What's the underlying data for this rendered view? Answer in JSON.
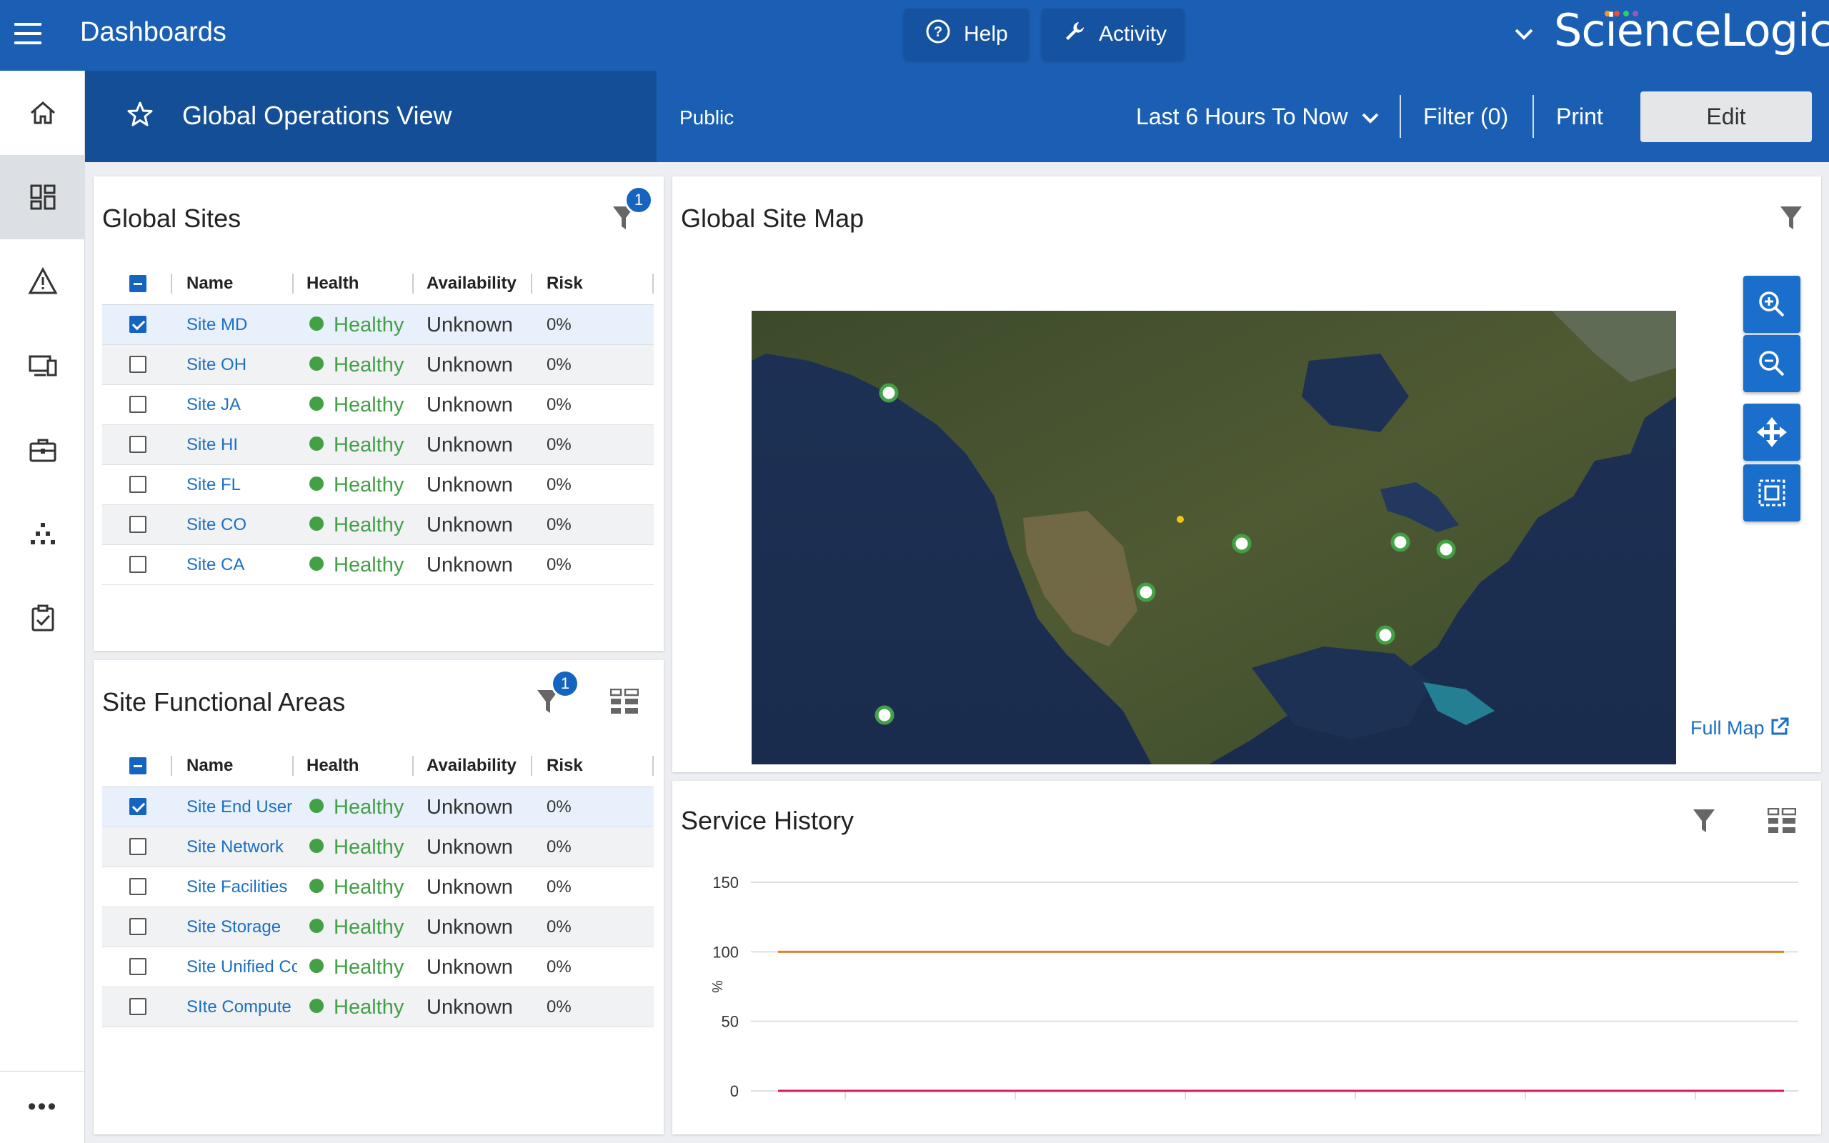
{
  "topbar": {
    "title": "Dashboards",
    "help_label": "Help",
    "activity_label": "Activity",
    "logo_text": "ScienceLogic",
    "brand_color": "#1a5fb4"
  },
  "leftnav": {
    "items": [
      "home-icon",
      "dashboards-icon",
      "events-icon",
      "devices-icon",
      "business-services-icon",
      "topology-icon",
      "tasks-icon"
    ],
    "more_label": "•••"
  },
  "subheader": {
    "dashboard_title": "Global Operations View",
    "visibility": "Public",
    "time_range": "Last 6 Hours To Now",
    "filter_label": "Filter (0)",
    "print_label": "Print",
    "edit_label": "Edit"
  },
  "global_sites": {
    "title": "Global Sites",
    "filter_count": "1",
    "columns": [
      "Name",
      "Health",
      "Availability",
      "Risk"
    ],
    "rows": [
      {
        "name": "Site MD",
        "health": "Healthy",
        "availability": "Unknown",
        "risk": "0%",
        "checked": true
      },
      {
        "name": "Site OH",
        "health": "Healthy",
        "availability": "Unknown",
        "risk": "0%",
        "checked": false
      },
      {
        "name": "Site JA",
        "health": "Healthy",
        "availability": "Unknown",
        "risk": "0%",
        "checked": false
      },
      {
        "name": "Site HI",
        "health": "Healthy",
        "availability": "Unknown",
        "risk": "0%",
        "checked": false
      },
      {
        "name": "Site FL",
        "health": "Healthy",
        "availability": "Unknown",
        "risk": "0%",
        "checked": false
      },
      {
        "name": "Site CO",
        "health": "Healthy",
        "availability": "Unknown",
        "risk": "0%",
        "checked": false
      },
      {
        "name": "Site CA",
        "health": "Healthy",
        "availability": "Unknown",
        "risk": "0%",
        "checked": false
      }
    ]
  },
  "functional_areas": {
    "title": "Site Functional Areas",
    "filter_count": "1",
    "columns": [
      "Name",
      "Health",
      "Availability",
      "Risk"
    ],
    "rows": [
      {
        "name": "Site End User I",
        "health": "Healthy",
        "availability": "Unknown",
        "risk": "0%",
        "checked": true
      },
      {
        "name": "Site Network",
        "health": "Healthy",
        "availability": "Unknown",
        "risk": "0%",
        "checked": false
      },
      {
        "name": "Site Facilities",
        "health": "Healthy",
        "availability": "Unknown",
        "risk": "0%",
        "checked": false
      },
      {
        "name": "Site Storage",
        "health": "Healthy",
        "availability": "Unknown",
        "risk": "0%",
        "checked": false
      },
      {
        "name": "Site Unified Cc",
        "health": "Healthy",
        "availability": "Unknown",
        "risk": "0%",
        "checked": false
      },
      {
        "name": "SIte Compute",
        "health": "Healthy",
        "availability": "Unknown",
        "risk": "0%",
        "checked": false
      }
    ]
  },
  "site_map": {
    "title": "Global Site Map",
    "full_map_label": "Full Map",
    "controls": [
      "zoom-in-icon",
      "zoom-out-icon",
      "pan-icon",
      "fit-bounds-icon"
    ]
  },
  "service_history": {
    "title": "Service History"
  },
  "chart_data": {
    "type": "line",
    "title": "Service History",
    "ylabel": "%",
    "xlabel": "",
    "ylim": [
      0,
      150
    ],
    "yticks": [
      0,
      50,
      100,
      150
    ],
    "grid": true,
    "series": [
      {
        "color": "#e67e22",
        "values": [
          100,
          100
        ]
      },
      {
        "color": "#d81b60",
        "values": [
          0,
          0
        ]
      }
    ]
  }
}
